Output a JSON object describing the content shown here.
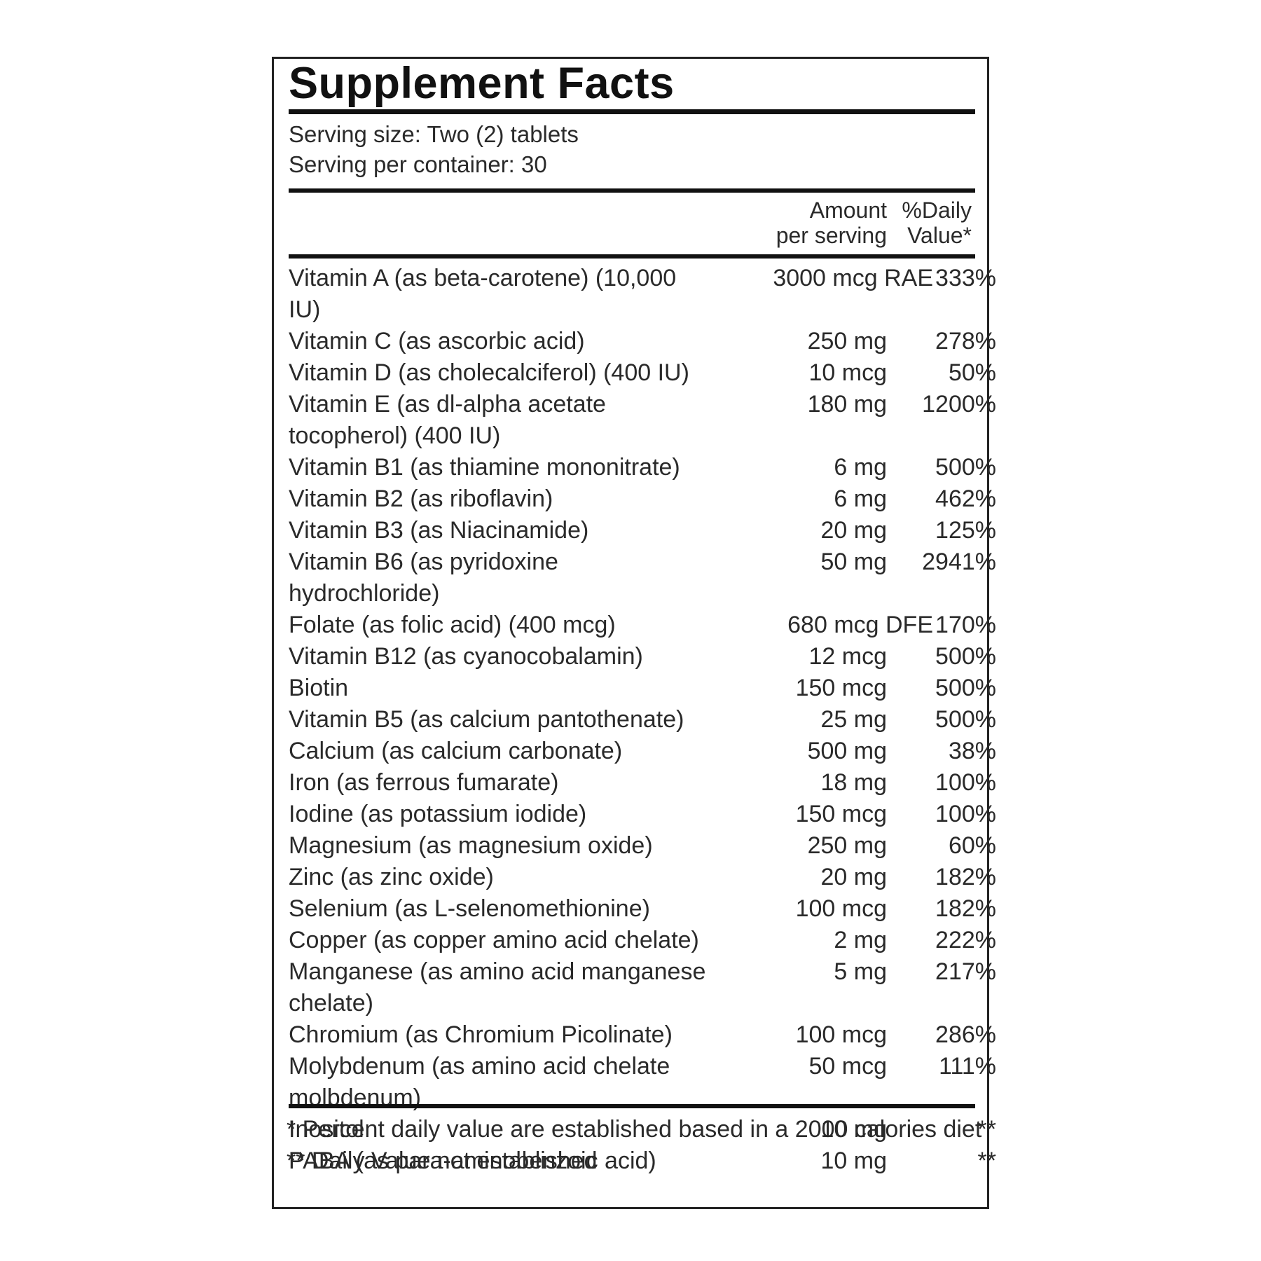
{
  "title": "Supplement Facts",
  "serving_size": "Serving size: Two (2) tablets",
  "servings_per_container": "Serving per container: 30",
  "header": {
    "amount_line1": "Amount",
    "amount_line2": "per serving",
    "dv_line1": "%Daily",
    "dv_line2": "Value*"
  },
  "nutrients": [
    {
      "name": "Vitamin A (as beta-carotene) (10,000 IU)",
      "amount": "3000 mcg RAE",
      "dv": "333%"
    },
    {
      "name": "Vitamin C (as ascorbic acid)",
      "amount": "250 mg",
      "dv": "278%"
    },
    {
      "name": "Vitamin D (as cholecalciferol) (400 IU)",
      "amount": "10 mcg",
      "dv": "50%"
    },
    {
      "name": "Vitamin E (as dl-alpha acetate tocopherol) (400 IU)",
      "amount": "180 mg",
      "dv": "1200%"
    },
    {
      "name": "Vitamin B1 (as thiamine mononitrate)",
      "amount": "6 mg",
      "dv": "500%"
    },
    {
      "name": "Vitamin B2 (as riboflavin)",
      "amount": "6 mg",
      "dv": "462%"
    },
    {
      "name": "Vitamin B3 (as Niacinamide)",
      "amount": "20 mg",
      "dv": "125%"
    },
    {
      "name": "Vitamin B6 (as pyridoxine hydrochloride)",
      "amount": "50 mg",
      "dv": "2941%"
    },
    {
      "name": "Folate (as folic acid) (400 mcg)",
      "amount": "680 mcg DFE",
      "dv": "170%"
    },
    {
      "name": "Vitamin B12 (as cyanocobalamin)",
      "amount": "12 mcg",
      "dv": "500%"
    },
    {
      "name": "Biotin",
      "amount": "150 mcg",
      "dv": "500%"
    },
    {
      "name": "Vitamin B5 (as calcium pantothenate)",
      "amount": "25 mg",
      "dv": "500%"
    },
    {
      "name": "Calcium (as calcium carbonate)",
      "amount": "500 mg",
      "dv": "38%"
    },
    {
      "name": "Iron (as ferrous fumarate)",
      "amount": "18 mg",
      "dv": "100%"
    },
    {
      "name": "Iodine (as potassium iodide)",
      "amount": "150 mcg",
      "dv": "100%"
    },
    {
      "name": "Magnesium (as magnesium oxide)",
      "amount": "250 mg",
      "dv": "60%"
    },
    {
      "name": "Zinc (as zinc oxide)",
      "amount": "20 mg",
      "dv": "182%"
    },
    {
      "name": "Selenium (as L-selenomethionine)",
      "amount": "100 mcg",
      "dv": "182%"
    },
    {
      "name": "Copper (as copper amino acid chelate)",
      "amount": "2 mg",
      "dv": "222%"
    },
    {
      "name": "Manganese (as amino acid manganese chelate)",
      "amount": "5 mg",
      "dv": "217%"
    },
    {
      "name": "Chromium (as Chromium Picolinate)",
      "amount": "100 mcg",
      "dv": "286%"
    },
    {
      "name": "Molybdenum (as amino acid chelate molbdenum)",
      "amount": "50 mcg",
      "dv": "111%"
    },
    {
      "name": "Inositol",
      "amount": "10 mg",
      "dv": "**"
    },
    {
      "name": "PABA (as para-aminobenzoic acid)",
      "amount": "10 mg",
      "dv": "**"
    }
  ],
  "footnotes": {
    "dv_note": "* Percent daily value are established based in a 2000 calories diet",
    "not_established": "** Daily Value not established"
  }
}
